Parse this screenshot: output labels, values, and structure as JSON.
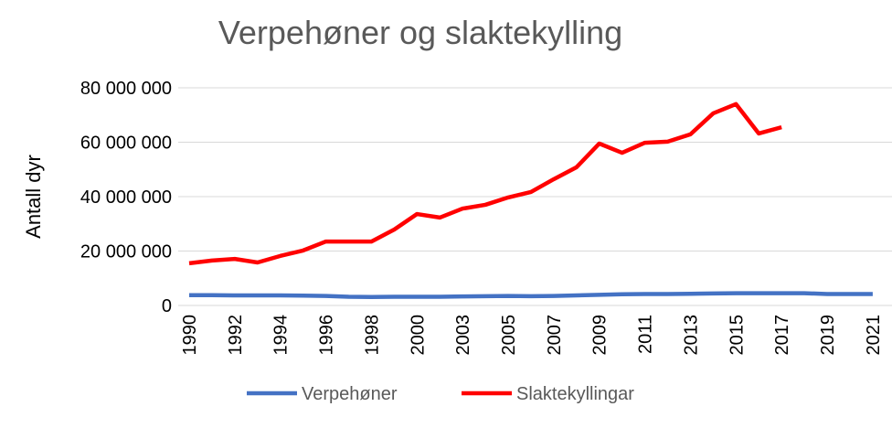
{
  "chart_data": {
    "type": "line",
    "title": "Verpehøner og slaktekylling",
    "y_label": "Antall dyr",
    "categories": [
      "1990",
      null,
      "1992",
      null,
      "1994",
      null,
      "1996",
      null,
      "1998",
      null,
      "2000",
      null,
      "2003",
      null,
      "2005",
      null,
      "2007",
      null,
      "2009",
      null,
      "2011",
      null,
      "2013",
      null,
      "2015",
      null,
      "2017",
      null,
      "2019",
      null,
      "2021"
    ],
    "series": [
      {
        "name": "Verpehøner",
        "color": "#4472c4",
        "values": [
          3800000,
          3800000,
          3700000,
          3700000,
          3700000,
          3600000,
          3500000,
          3200000,
          3100000,
          3200000,
          3200000,
          3200000,
          3300000,
          3400000,
          3500000,
          3400000,
          3500000,
          3700000,
          3900000,
          4100000,
          4200000,
          4200000,
          4300000,
          4400000,
          4500000,
          4500000,
          4500000,
          4500000,
          4200000,
          4200000,
          4200000
        ]
      },
      {
        "name": "Slaktekyllingar",
        "color": "#ff0000",
        "values": [
          15500000,
          16500000,
          17100000,
          15800000,
          18200000,
          20200000,
          23500000,
          23500000,
          23500000,
          27900000,
          33600000,
          32300000,
          35600000,
          37000000,
          39700000,
          41700000,
          46400000,
          50800000,
          59500000,
          56100000,
          59800000,
          60200000,
          62900000,
          70600000,
          74000000,
          63200000,
          65500000,
          null,
          null,
          null,
          null
        ]
      }
    ],
    "ylim": [
      0,
      80000000
    ],
    "yticks": [
      0,
      {
        "value": 20000000,
        "label": "20 000 000"
      },
      {
        "value": 40000000,
        "label": "40 000 000"
      },
      {
        "value": 60000000,
        "label": "60 000 000"
      },
      {
        "value": 80000000,
        "label": "80 000 000"
      }
    ],
    "grid": true,
    "legend": "bottom"
  }
}
